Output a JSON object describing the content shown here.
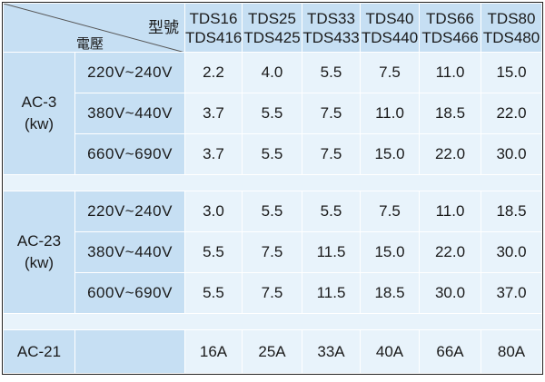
{
  "header": {
    "model_label": "型號",
    "voltage_label": "電壓",
    "models": [
      {
        "top": "TDS16",
        "bottom": "TDS416"
      },
      {
        "top": "TDS25",
        "bottom": "TDS425"
      },
      {
        "top": "TDS33",
        "bottom": "TDS433"
      },
      {
        "top": "TDS40",
        "bottom": "TDS440"
      },
      {
        "top": "TDS66",
        "bottom": "TDS466"
      },
      {
        "top": "TDS80",
        "bottom": "TDS480"
      }
    ]
  },
  "ac3": {
    "label_line1": "AC-3",
    "label_line2": "(kw)",
    "rows": [
      {
        "voltage": "220V~240V",
        "values": [
          "2.2",
          "4.0",
          "5.5",
          "7.5",
          "11.0",
          "15.0"
        ]
      },
      {
        "voltage": "380V~440V",
        "values": [
          "3.7",
          "5.5",
          "7.5",
          "11.0",
          "18.5",
          "22.0"
        ]
      },
      {
        "voltage": "660V~690V",
        "values": [
          "3.7",
          "5.5",
          "7.5",
          "15.0",
          "22.0",
          "30.0"
        ]
      }
    ]
  },
  "ac23": {
    "label_line1": "AC-23",
    "label_line2": "(kw)",
    "rows": [
      {
        "voltage": "220V~240V",
        "values": [
          "3.0",
          "5.5",
          "5.5",
          "7.5",
          "11.0",
          "18.5"
        ]
      },
      {
        "voltage": "380V~440V",
        "values": [
          "5.5",
          "7.5",
          "11.5",
          "15.0",
          "22.0",
          "30.0"
        ]
      },
      {
        "voltage": "600V~690V",
        "values": [
          "5.5",
          "7.5",
          "11.5",
          "18.5",
          "30.0",
          "37.0"
        ]
      }
    ]
  },
  "ac21": {
    "label": "AC-21",
    "voltage": "",
    "values": [
      "16A",
      "25A",
      "33A",
      "40A",
      "66A",
      "80A"
    ]
  },
  "colors": {
    "header_blue": "#c6dff3",
    "cell_light": "#e8f3fb",
    "border": "#ffffff"
  }
}
